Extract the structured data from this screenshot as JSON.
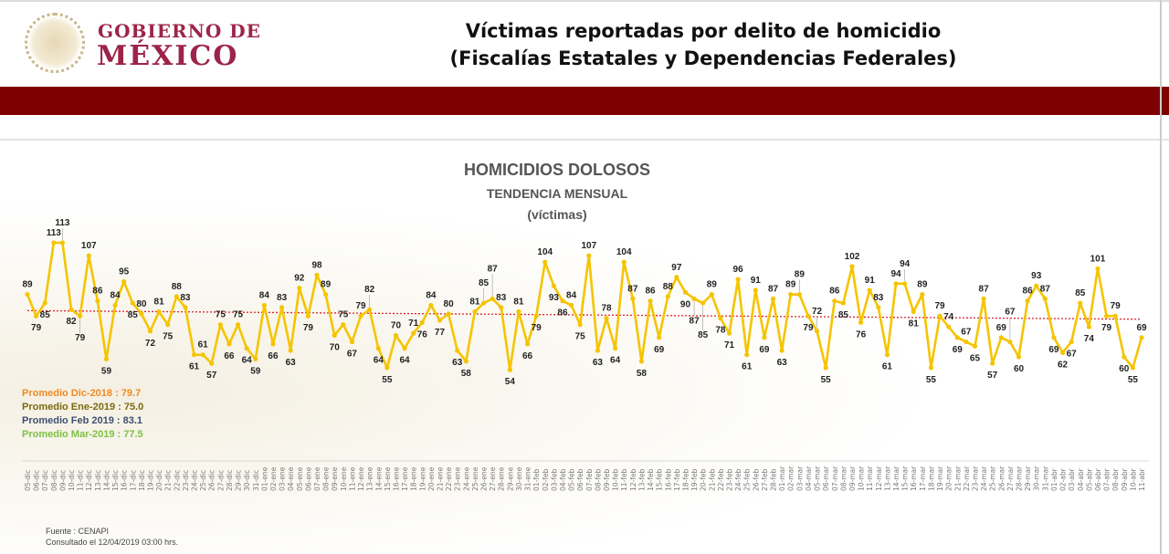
{
  "header": {
    "logo_line1": "GOBIERNO DE",
    "logo_line2": "MÉXICO",
    "title_line1": "Víctimas reportadas por delito de homicidio",
    "title_line2": "(Fiscalías Estatales y Dependencias Federales)"
  },
  "colors": {
    "brand": "#9d2449",
    "band": "#7f0000",
    "line": "#f5c400",
    "trend": "#d9262e"
  },
  "chart_data": {
    "type": "line",
    "title": "HOMICIDIOS DOLOSOS",
    "subtitle": "TENDENCIA MENSUAL",
    "unit": "(víctimas)",
    "x": [
      "05-dic",
      "06-dic",
      "07-dic",
      "08-dic",
      "09-dic",
      "10-dic",
      "11-dic",
      "12-dic",
      "13-dic",
      "14-dic",
      "15-dic",
      "16-dic",
      "17-dic",
      "18-dic",
      "19-dic",
      "20-dic",
      "21-dic",
      "22-dic",
      "23-dic",
      "24-dic",
      "25-dic",
      "26-dic",
      "27-dic",
      "28-dic",
      "29-dic",
      "30-dic",
      "31-dic",
      "01-ene",
      "02-ene",
      "03-ene",
      "04-ene",
      "05-ene",
      "06-ene",
      "07-ene",
      "08-ene",
      "09-ene",
      "10-ene",
      "11-ene",
      "12-ene",
      "13-ene",
      "14-ene",
      "15-ene",
      "16-ene",
      "17-ene",
      "18-ene",
      "19-ene",
      "20-ene",
      "21-ene",
      "22-ene",
      "23-ene",
      "24-ene",
      "25-ene",
      "26-ene",
      "27-ene",
      "28-ene",
      "29-ene",
      "30-ene",
      "31-ene",
      "01-feb",
      "02-feb",
      "03-feb",
      "04-feb",
      "05-feb",
      "06-feb",
      "07-feb",
      "08-feb",
      "09-feb",
      "10-feb",
      "11-feb",
      "12-feb",
      "13-feb",
      "14-feb",
      "15-feb",
      "16-feb",
      "17-feb",
      "18-feb",
      "19-feb",
      "20-feb",
      "21-feb",
      "22-feb",
      "23-feb",
      "24-feb",
      "25-feb",
      "26-feb",
      "27-feb",
      "28-feb",
      "01-mar",
      "02-mar",
      "03-mar",
      "04-mar",
      "05-mar",
      "06-mar",
      "07-mar",
      "08-mar",
      "09-mar",
      "10-mar",
      "11-mar",
      "12-mar",
      "13-mar",
      "14-mar",
      "15-mar",
      "16-mar",
      "17-mar",
      "18-mar",
      "19-mar",
      "20-mar",
      "21-mar",
      "22-mar",
      "23-mar",
      "24-mar",
      "25-mar",
      "26-mar",
      "27-mar",
      "28-mar",
      "29-mar",
      "30-mar",
      "31-mar",
      "01-abr",
      "02-abr",
      "03-abr",
      "04-abr",
      "05-abr",
      "06-abr",
      "07-abr",
      "08-abr",
      "09-abr",
      "10-abr",
      "11-abr"
    ],
    "series": [
      {
        "name": "Víctimas",
        "values": [
          89,
          79,
          85,
          113,
          113,
          82,
          79,
          107,
          86,
          59,
          84,
          95,
          85,
          80,
          72,
          81,
          75,
          88,
          83,
          61,
          61,
          57,
          75,
          66,
          75,
          64,
          59,
          84,
          66,
          83,
          63,
          92,
          79,
          98,
          89,
          70,
          75,
          67,
          79,
          82,
          64,
          55,
          70,
          64,
          71,
          76,
          84,
          77,
          80,
          63,
          58,
          81,
          85,
          87,
          83,
          54,
          81,
          66,
          79,
          104,
          93,
          86,
          84,
          75,
          107,
          63,
          78,
          64,
          104,
          87,
          58,
          86,
          69,
          88,
          97,
          90,
          87,
          85,
          89,
          78,
          71,
          96,
          61,
          91,
          69,
          87,
          63,
          89,
          89,
          79,
          72,
          55,
          86,
          85,
          102,
          76,
          91,
          83,
          61,
          94,
          94,
          81,
          89,
          55,
          79,
          74,
          69,
          67,
          65,
          87,
          57,
          69,
          67,
          60,
          86,
          93,
          87,
          69,
          62,
          67,
          85,
          74,
          101,
          79,
          79,
          60,
          55,
          69
        ]
      }
    ],
    "trendline": {
      "name": "Tendencia",
      "start": 81.5,
      "end": 77.5
    },
    "ylim": [
      40,
      125
    ],
    "grid": false,
    "legend_placement": "bottom-left",
    "averages": [
      {
        "label": "Promedio Dic-2018  : 79.7",
        "color": "#f08a24"
      },
      {
        "label": "Promedio Ene-2019 : 75.0",
        "color": "#7a6a10"
      },
      {
        "label": "Promedio Feb 2019 :  83.1",
        "color": "#3f4f72"
      },
      {
        "label": "Promedio Mar-2019 : 77.5",
        "color": "#7dc242"
      }
    ]
  },
  "source": {
    "line1": "Fuente : CENAPI",
    "line2": "Consultado el 12/04/2019 03:00 hrs."
  }
}
